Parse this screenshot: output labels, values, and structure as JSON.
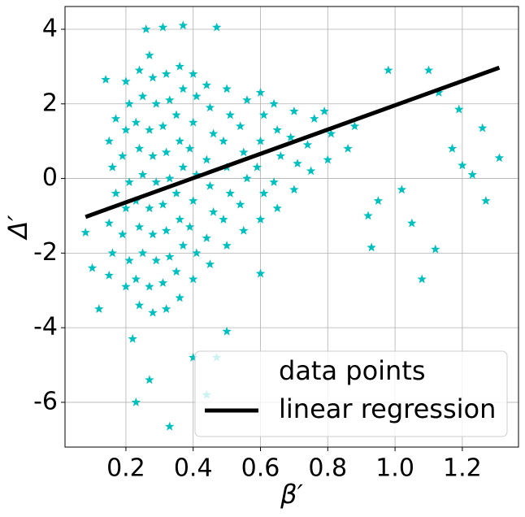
{
  "chart_data": {
    "type": "scatter",
    "xlabel": "β′",
    "ylabel": "Δ′",
    "xlim": [
      0.019,
      1.367
    ],
    "ylim": [
      -7.2,
      4.61
    ],
    "xticks": [
      0.2,
      0.4,
      0.6,
      0.8,
      {
        "value": 1.0,
        "label": "1.0"
      },
      1.2
    ],
    "yticks": [
      -6,
      -4,
      -2,
      0,
      2,
      4
    ],
    "grid": true,
    "legend": "lower right",
    "series": [
      {
        "name": "data points",
        "type": "scatter",
        "color": "#00bfbf",
        "x": [
          0.16,
          0.15,
          0.17,
          0.16,
          0.15,
          0.17,
          0.2,
          0.21,
          0.19,
          0.2,
          0.21,
          0.19,
          0.2,
          0.21,
          0.2,
          0.24,
          0.23,
          0.25,
          0.24,
          0.23,
          0.25,
          0.24,
          0.23,
          0.25,
          0.24,
          0.28,
          0.27,
          0.29,
          0.28,
          0.27,
          0.29,
          0.28,
          0.27,
          0.29,
          0.28,
          0.27,
          0.32,
          0.31,
          0.33,
          0.32,
          0.31,
          0.33,
          0.32,
          0.31,
          0.33,
          0.32,
          0.36,
          0.35,
          0.37,
          0.36,
          0.35,
          0.37,
          0.36,
          0.35,
          0.37,
          0.36,
          0.4,
          0.41,
          0.39,
          0.4,
          0.41,
          0.39,
          0.4,
          0.41,
          0.4,
          0.45,
          0.44,
          0.46,
          0.45,
          0.44,
          0.46,
          0.45,
          0.44,
          0.5,
          0.49,
          0.51,
          0.5,
          0.49,
          0.51,
          0.5,
          0.55,
          0.54,
          0.56,
          0.55,
          0.54,
          0.56,
          0.6,
          0.61,
          0.59,
          0.6,
          0.61,
          0.6,
          0.65,
          0.64,
          0.66,
          0.65,
          0.64,
          0.7,
          0.71,
          0.69,
          0.7,
          0.75,
          0.74,
          0.76,
          0.8,
          0.81,
          0.79,
          0.86,
          0.88,
          0.08,
          0.1,
          0.12,
          0.23,
          0.33,
          0.27,
          0.22,
          0.4,
          0.5,
          0.47,
          0.44,
          0.26,
          0.31,
          0.37,
          0.47,
          0.14,
          0.93,
          0.95,
          0.98,
          1.02,
          1.05,
          1.08,
          1.1,
          1.13,
          1.12,
          1.17,
          1.2,
          1.23,
          1.26,
          1.27,
          1.31,
          1.19,
          0.92,
          0.6,
          0.15
        ],
        "values": [
          -2.0,
          -1.2,
          -0.4,
          0.3,
          1.0,
          1.6,
          -2.9,
          -2.2,
          -1.5,
          -0.8,
          -0.1,
          0.6,
          1.3,
          2.0,
          2.6,
          -3.4,
          -2.7,
          -2.0,
          -1.3,
          -0.6,
          0.1,
          0.8,
          1.5,
          2.2,
          2.9,
          -3.6,
          -2.9,
          -2.2,
          -1.5,
          -0.8,
          -0.1,
          0.6,
          1.3,
          2.0,
          2.7,
          3.3,
          -3.5,
          -2.8,
          -2.1,
          -1.4,
          -0.7,
          0.0,
          0.7,
          1.4,
          2.1,
          2.8,
          -3.2,
          -2.5,
          -1.8,
          -1.1,
          -0.4,
          0.3,
          1.0,
          1.7,
          2.4,
          3.0,
          -2.7,
          -2.0,
          -1.3,
          -0.6,
          0.1,
          0.8,
          1.5,
          2.2,
          2.8,
          -2.3,
          -1.6,
          -0.9,
          -0.2,
          0.5,
          1.2,
          1.9,
          2.5,
          -1.8,
          -1.1,
          -0.4,
          0.3,
          1.0,
          1.7,
          2.4,
          -1.4,
          -0.7,
          0.0,
          0.7,
          1.4,
          2.1,
          -1.1,
          -0.4,
          0.3,
          1.0,
          1.7,
          2.3,
          -0.8,
          -0.1,
          0.6,
          1.3,
          2.0,
          -0.3,
          0.4,
          1.1,
          1.8,
          0.2,
          0.9,
          1.6,
          0.5,
          1.2,
          1.8,
          0.8,
          1.4,
          -1.45,
          -2.4,
          -3.5,
          -6.0,
          -6.65,
          -5.4,
          -4.3,
          -4.8,
          -4.1,
          -4.8,
          -5.8,
          4.0,
          4.05,
          4.1,
          4.05,
          2.65,
          -1.85,
          -0.6,
          2.9,
          -0.3,
          -1.2,
          -2.7,
          2.9,
          2.3,
          -1.9,
          0.8,
          0.35,
          0.1,
          1.35,
          -0.6,
          0.55,
          1.85,
          -1.0,
          -2.55,
          -2.6
        ]
      },
      {
        "name": "linear regression",
        "type": "line",
        "color": "#000000",
        "x": [
          0.08,
          1.31
        ],
        "values": [
          -1.03,
          2.97
        ]
      }
    ]
  }
}
